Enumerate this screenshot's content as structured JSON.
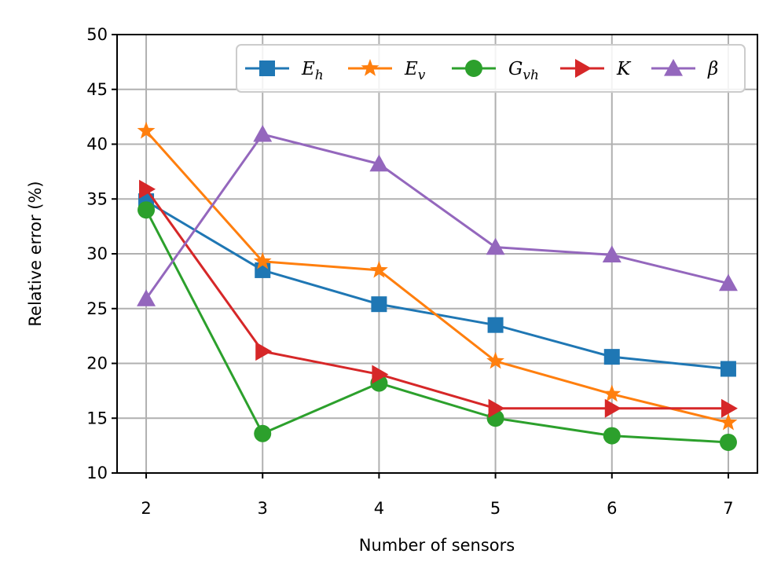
{
  "chart_data": {
    "type": "line",
    "title": "",
    "xlabel": "Number of sensors",
    "ylabel": "Relative error (%)",
    "x": [
      2,
      3,
      4,
      5,
      6,
      7
    ],
    "xticks": [
      "2",
      "3",
      "4",
      "5",
      "6",
      "7"
    ],
    "xlim": [
      1.75,
      7.25
    ],
    "ylim": [
      10,
      50
    ],
    "yticks": [
      "10",
      "15",
      "20",
      "25",
      "30",
      "35",
      "40",
      "45",
      "50"
    ],
    "grid": true,
    "legend_position": "top-right",
    "series": [
      {
        "name": "E",
        "sub": "h",
        "marker": "square",
        "color": "#1f77b4",
        "values": [
          34.8,
          28.5,
          25.4,
          23.5,
          20.6,
          19.5
        ]
      },
      {
        "name": "E",
        "sub": "v",
        "marker": "star",
        "color": "#ff7f0e",
        "values": [
          41.2,
          29.3,
          28.5,
          20.2,
          17.2,
          14.6
        ]
      },
      {
        "name": "G",
        "sub": "vh",
        "marker": "circle",
        "color": "#2ca02c",
        "values": [
          34.0,
          13.6,
          18.2,
          15.0,
          13.4,
          12.8
        ]
      },
      {
        "name": "K",
        "sub": "",
        "marker": "triangle-right",
        "color": "#d62728",
        "values": [
          35.9,
          21.1,
          19.0,
          15.9,
          15.9,
          15.9
        ]
      },
      {
        "name": "β",
        "sub": "",
        "marker": "triangle-up",
        "color": "#9467bd",
        "values": [
          25.9,
          40.9,
          38.2,
          30.6,
          29.9,
          27.3
        ]
      }
    ]
  }
}
